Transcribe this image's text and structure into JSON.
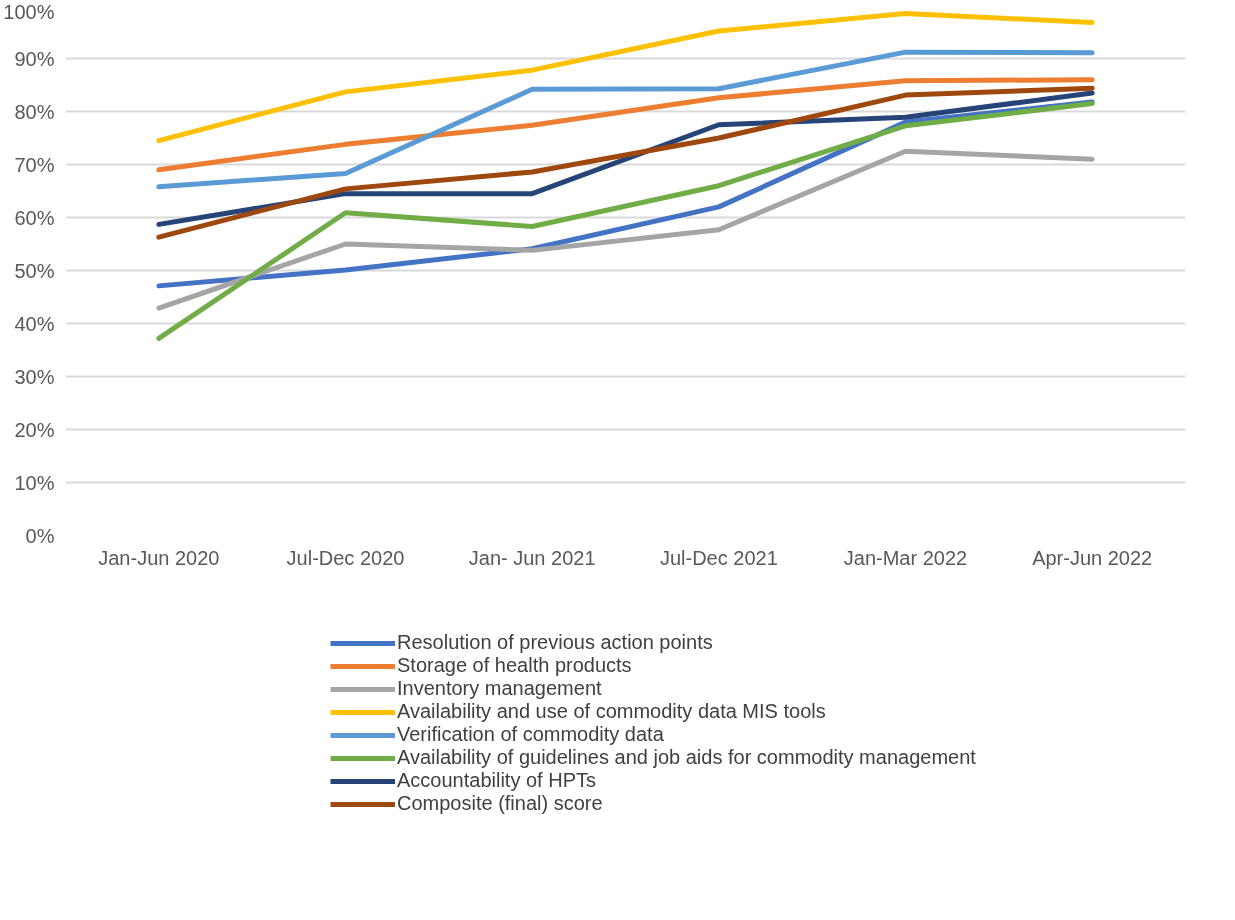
{
  "chart_data": {
    "type": "line",
    "categories": [
      "Jan-Jun 2020",
      "Jul-Dec 2020",
      "Jan- Jun 2021",
      "Jul-Dec 2021",
      "Jan-Mar 2022",
      "Apr-Jun 2022"
    ],
    "ylim": [
      0,
      100
    ],
    "yticks": [
      {
        "value": 0,
        "label": "0%"
      },
      {
        "value": 10,
        "label": "10%"
      },
      {
        "value": 20,
        "label": "20%"
      },
      {
        "value": 30,
        "label": "30%"
      },
      {
        "value": 40,
        "label": "40%"
      },
      {
        "value": 50,
        "label": "50%"
      },
      {
        "value": 60,
        "label": "60%"
      },
      {
        "value": 70,
        "label": "70%"
      },
      {
        "value": 80,
        "label": "80%"
      },
      {
        "value": 90,
        "label": "90%"
      },
      {
        "value": 100,
        "label": "100%"
      }
    ],
    "grid": "y",
    "legend": "bottom",
    "marker": "none",
    "line_style": "solid",
    "series": [
      {
        "name": "Resolution of previous action points",
        "color": "#4472c4",
        "values": [
          47.1,
          50.1,
          54.1,
          62.0,
          78.0,
          81.8
        ]
      },
      {
        "name": "Storage of health products",
        "color": "#ed7d31",
        "values": [
          69.0,
          73.8,
          77.4,
          82.6,
          85.8,
          86.0
        ]
      },
      {
        "name": "Inventory management",
        "color": "#a5a5a5",
        "values": [
          42.9,
          55.0,
          53.8,
          57.7,
          72.5,
          71.0
        ]
      },
      {
        "name": "Availability and use of commodity data MIS tools",
        "color": "#ffc000",
        "values": [
          74.5,
          83.7,
          87.8,
          95.2,
          98.5,
          96.8
        ]
      },
      {
        "name": "Verification of commodity data",
        "color": "#5b9bd5",
        "values": [
          65.8,
          68.3,
          84.2,
          84.3,
          91.2,
          91.1
        ]
      },
      {
        "name": "Availability of guidelines and job aids for commodity management",
        "color": "#70ad47",
        "values": [
          37.2,
          60.9,
          58.3,
          66.0,
          77.3,
          81.5
        ]
      },
      {
        "name": "Accountability of HPTs",
        "color": "#264478",
        "values": [
          58.7,
          64.5,
          64.5,
          77.5,
          78.9,
          83.5
        ]
      },
      {
        "name": "Composite (final) score",
        "color": "#9e480e",
        "values": [
          56.3,
          65.4,
          68.6,
          75.0,
          83.1,
          84.4
        ]
      }
    ]
  }
}
